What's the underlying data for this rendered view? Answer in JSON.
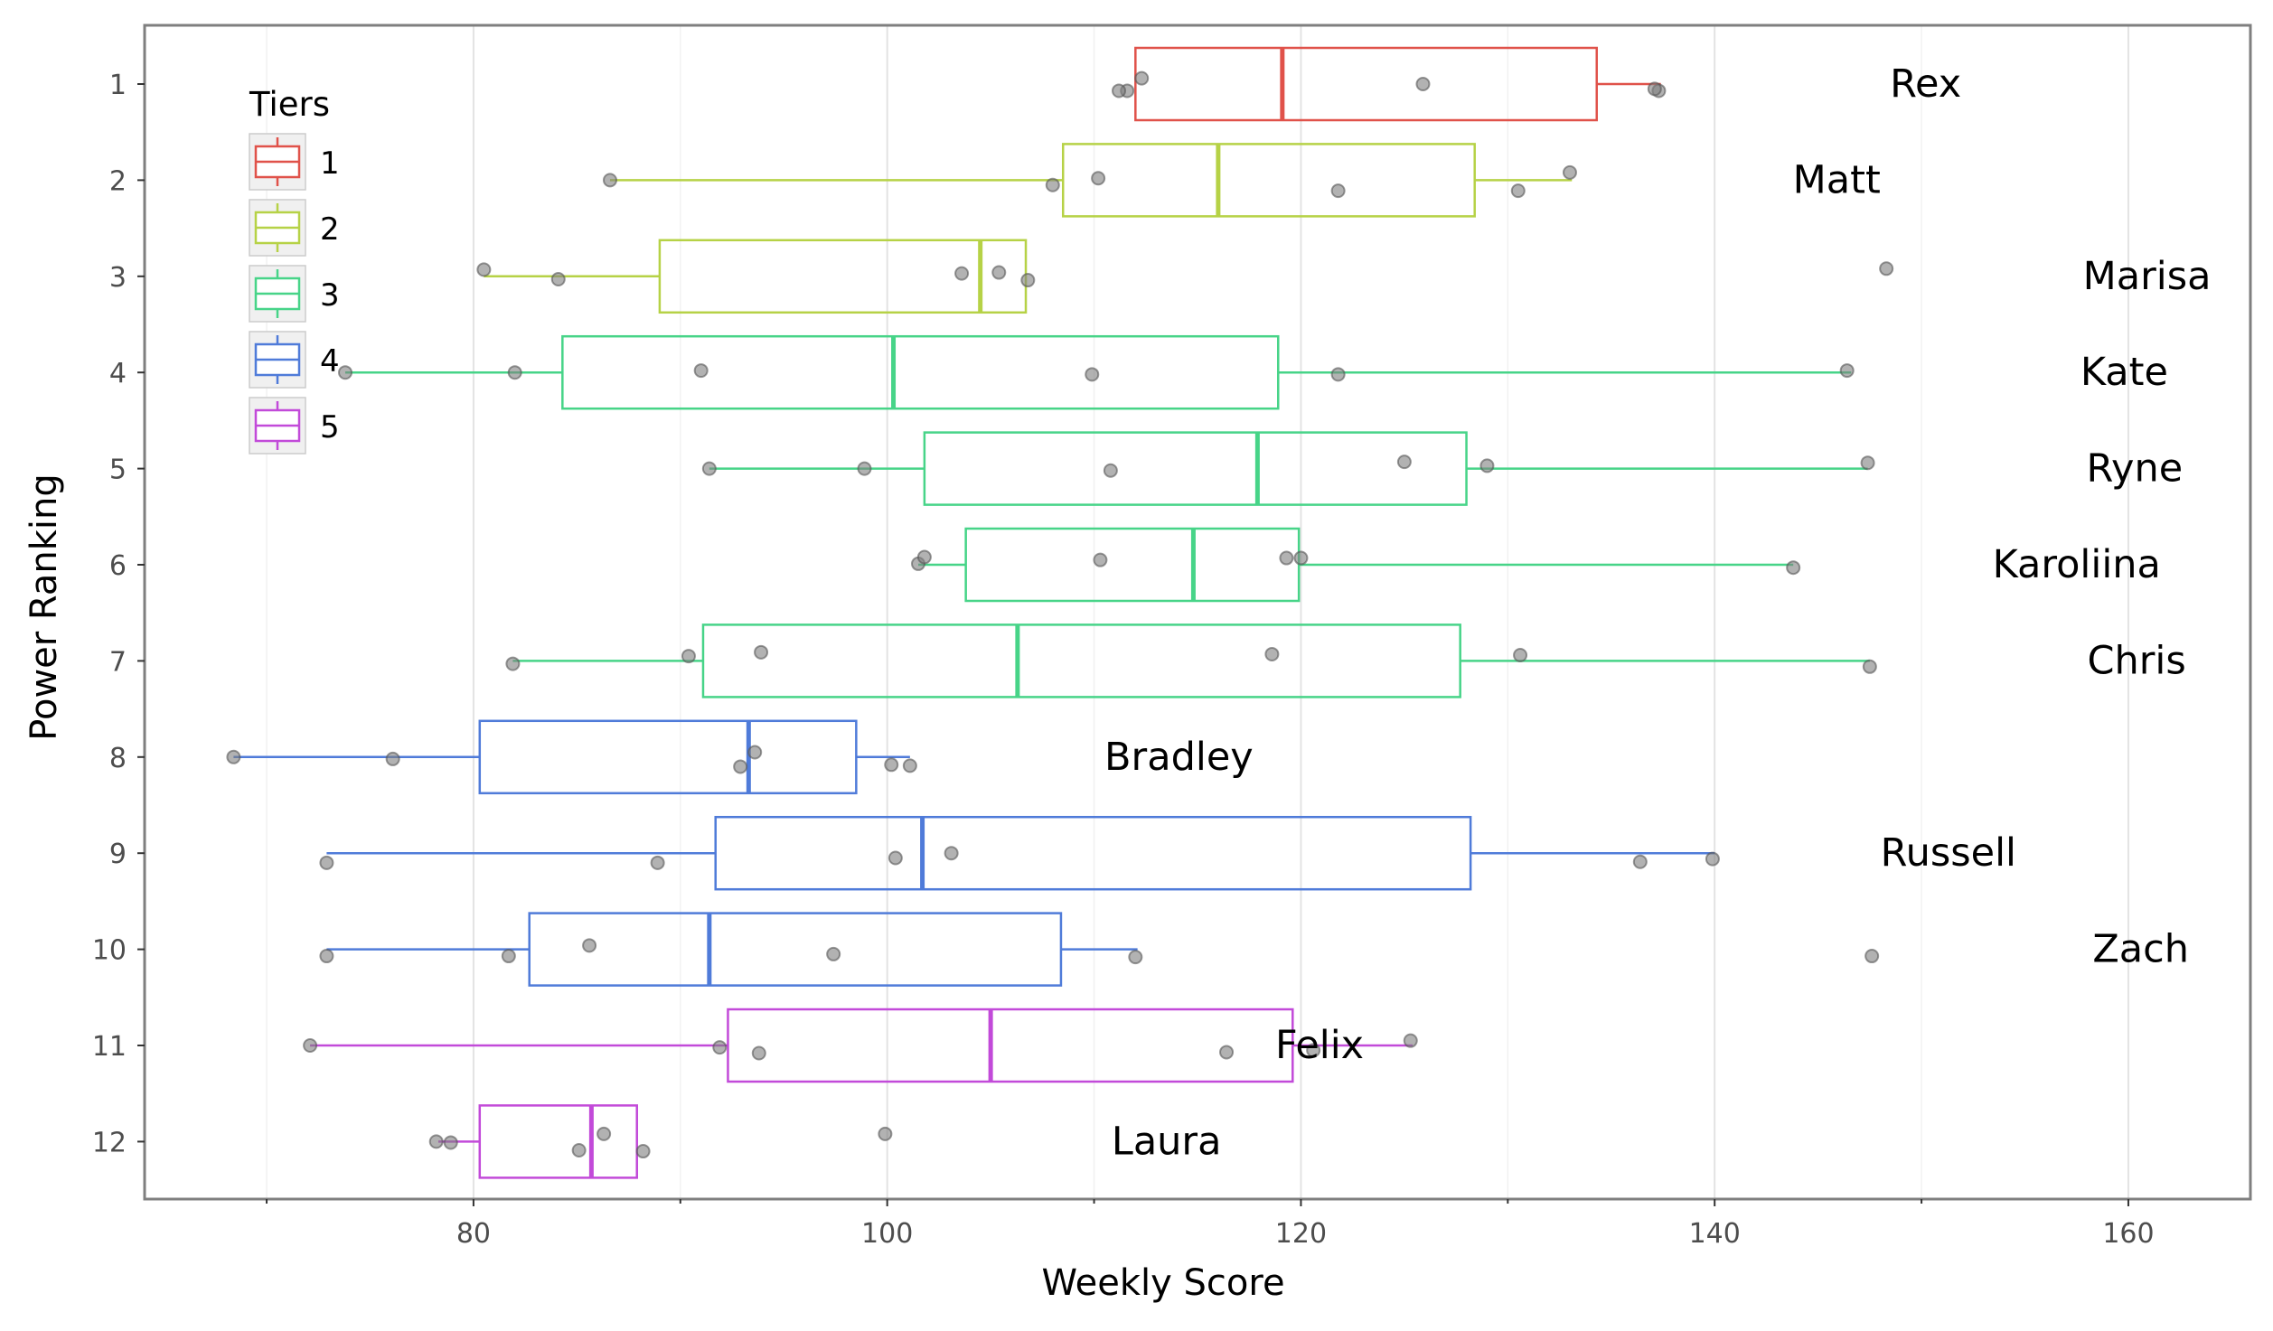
{
  "chart_data": {
    "type": "boxplot",
    "xlabel": "Weekly Score",
    "ylabel": "Power Ranking",
    "xlim": [
      64.1,
      165.9
    ],
    "x_ticks": [
      80,
      100,
      120,
      140,
      160
    ],
    "x_minor_ticks": [
      70,
      90,
      110,
      130,
      150
    ],
    "y_categories": [
      "1",
      "2",
      "3",
      "4",
      "5",
      "6",
      "7",
      "8",
      "9",
      "10",
      "11",
      "12"
    ],
    "grid": true,
    "legend": {
      "title": "Tiers",
      "position": "top-left-inside",
      "items": [
        {
          "label": "1",
          "color": "#e0524a"
        },
        {
          "label": "2",
          "color": "#b6d246"
        },
        {
          "label": "3",
          "color": "#47d488"
        },
        {
          "label": "4",
          "color": "#4f7bd9"
        },
        {
          "label": "5",
          "color": "#c24ad9"
        }
      ]
    },
    "series": [
      {
        "rank": "1",
        "name": "Rex",
        "tier": 1,
        "label_x": 150.2,
        "whisker_low": 112.0,
        "q1": 112.0,
        "median": 119.1,
        "q3": 134.3,
        "whisker_high": 137.4,
        "points": [
          [
            112.3,
            -0.06
          ],
          [
            111.6,
            0.07
          ],
          [
            111.2,
            0.07
          ],
          [
            125.9,
            0.0
          ],
          [
            137.3,
            0.07
          ],
          [
            137.1,
            0.05
          ]
        ]
      },
      {
        "rank": "2",
        "name": "Matt",
        "tier": 2,
        "label_x": 145.9,
        "whisker_low": 86.6,
        "q1": 108.5,
        "median": 116.0,
        "q3": 128.4,
        "whisker_high": 133.1,
        "points": [
          [
            86.6,
            0.0
          ],
          [
            108.0,
            0.05
          ],
          [
            110.2,
            -0.02
          ],
          [
            121.8,
            0.11
          ],
          [
            130.5,
            0.11
          ],
          [
            133.0,
            -0.08
          ]
        ]
      },
      {
        "rank": "3",
        "name": "Marisa",
        "tier": 2,
        "label_x": 160.9,
        "whisker_low": 80.5,
        "q1": 89.0,
        "median": 104.5,
        "q3": 106.7,
        "whisker_high": 106.7,
        "points": [
          [
            80.5,
            -0.07
          ],
          [
            84.1,
            0.03
          ],
          [
            103.6,
            -0.03
          ],
          [
            105.4,
            -0.04
          ],
          [
            106.8,
            0.04
          ],
          [
            148.3,
            -0.08
          ]
        ]
      },
      {
        "rank": "4",
        "name": "Kate",
        "tier": 3,
        "label_x": 159.8,
        "whisker_low": 73.8,
        "q1": 84.3,
        "median": 100.3,
        "q3": 118.9,
        "whisker_high": 146.6,
        "points": [
          [
            73.8,
            0.0
          ],
          [
            82.0,
            0.0
          ],
          [
            91.0,
            -0.02
          ],
          [
            109.9,
            0.02
          ],
          [
            121.8,
            0.02
          ],
          [
            146.4,
            -0.02
          ]
        ]
      },
      {
        "rank": "5",
        "name": "Ryne",
        "tier": 3,
        "label_x": 160.3,
        "whisker_low": 91.4,
        "q1": 101.8,
        "median": 117.9,
        "q3": 128.0,
        "whisker_high": 147.4,
        "points": [
          [
            91.4,
            0.0
          ],
          [
            98.9,
            0.0
          ],
          [
            110.8,
            0.02
          ],
          [
            125.0,
            -0.07
          ],
          [
            129.0,
            -0.03
          ],
          [
            147.4,
            -0.06
          ]
        ]
      },
      {
        "rank": "6",
        "name": "Karoliina",
        "tier": 3,
        "label_x": 157.5,
        "whisker_low": 101.5,
        "q1": 103.8,
        "median": 114.8,
        "q3": 119.9,
        "whisker_high": 143.8,
        "points": [
          [
            101.5,
            -0.01
          ],
          [
            101.8,
            -0.08
          ],
          [
            110.3,
            -0.05
          ],
          [
            119.3,
            -0.07
          ],
          [
            120.0,
            -0.07
          ],
          [
            143.8,
            0.03
          ]
        ]
      },
      {
        "rank": "7",
        "name": "Chris",
        "tier": 3,
        "label_x": 160.4,
        "whisker_low": 81.9,
        "q1": 91.1,
        "median": 106.3,
        "q3": 127.7,
        "whisker_high": 147.5,
        "points": [
          [
            81.9,
            0.03
          ],
          [
            90.4,
            -0.05
          ],
          [
            93.9,
            -0.09
          ],
          [
            118.6,
            -0.07
          ],
          [
            130.6,
            -0.06
          ],
          [
            147.5,
            0.06
          ]
        ]
      },
      {
        "rank": "8",
        "name": "Bradley",
        "tier": 4,
        "label_x": 114.1,
        "whisker_low": 68.4,
        "q1": 80.3,
        "median": 93.3,
        "q3": 98.5,
        "whisker_high": 101.1,
        "points": [
          [
            68.4,
            0.0
          ],
          [
            76.1,
            0.02
          ],
          [
            93.6,
            -0.05
          ],
          [
            92.9,
            0.1
          ],
          [
            100.2,
            0.08
          ],
          [
            101.1,
            0.09
          ]
        ]
      },
      {
        "rank": "9",
        "name": "Russell",
        "tier": 4,
        "label_x": 151.3,
        "whisker_low": 72.9,
        "q1": 91.7,
        "median": 101.7,
        "q3": 128.2,
        "whisker_high": 140.0,
        "points": [
          [
            72.9,
            0.1
          ],
          [
            88.9,
            0.1
          ],
          [
            100.4,
            0.05
          ],
          [
            103.1,
            0.0
          ],
          [
            136.4,
            0.09
          ],
          [
            139.9,
            0.06
          ]
        ]
      },
      {
        "rank": "10",
        "name": "Zach",
        "tier": 4,
        "label_x": 160.6,
        "whisker_low": 72.9,
        "q1": 82.7,
        "median": 91.4,
        "q3": 108.4,
        "whisker_high": 112.1,
        "points": [
          [
            72.9,
            0.07
          ],
          [
            81.7,
            0.07
          ],
          [
            85.6,
            -0.04
          ],
          [
            97.4,
            0.05
          ],
          [
            112.0,
            0.08
          ],
          [
            147.6,
            0.07
          ]
        ]
      },
      {
        "rank": "11",
        "name": "Felix",
        "tier": 5,
        "label_x": 120.9,
        "whisker_low": 72.1,
        "q1": 92.3,
        "median": 105.0,
        "q3": 119.6,
        "whisker_high": 125.4,
        "points": [
          [
            72.1,
            0.0
          ],
          [
            91.9,
            0.02
          ],
          [
            93.8,
            0.08
          ],
          [
            116.4,
            0.07
          ],
          [
            120.6,
            0.05
          ],
          [
            125.3,
            -0.05
          ]
        ]
      },
      {
        "rank": "12",
        "name": "Laura",
        "tier": 5,
        "label_x": 113.5,
        "whisker_low": 78.3,
        "q1": 80.3,
        "median": 85.7,
        "q3": 87.9,
        "whisker_high": 87.9,
        "points": [
          [
            78.2,
            0.0
          ],
          [
            78.9,
            0.01
          ],
          [
            85.1,
            0.09
          ],
          [
            86.3,
            -0.08
          ],
          [
            88.2,
            0.1
          ],
          [
            99.9,
            -0.08
          ]
        ]
      }
    ]
  }
}
